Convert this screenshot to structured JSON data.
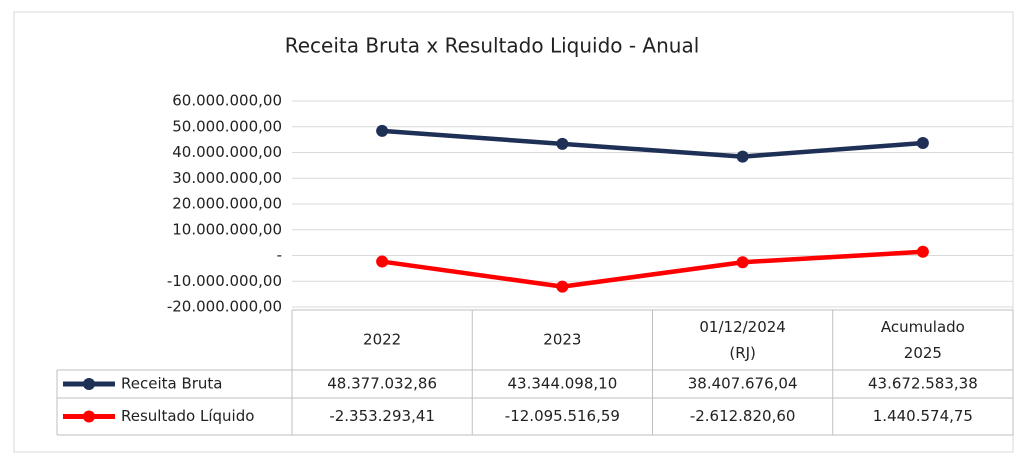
{
  "chart_data": {
    "type": "line",
    "title": "Receita Bruta x Resultado Liquido - Anual",
    "categories": [
      "2022",
      "2023",
      "01/12/2024 (RJ)",
      "Acumulado 2025"
    ],
    "series": [
      {
        "name": "Receita Bruta",
        "color": "#1f3057",
        "values": [
          48377032.86,
          43344098.1,
          38407676.04,
          43672583.38
        ],
        "value_labels": [
          "48.377.032,86",
          "43.344.098,10",
          "38.407.676,04",
          "43.672.583,38"
        ]
      },
      {
        "name": "Resultado Líquido",
        "color": "#ff0000",
        "values": [
          -2353293.41,
          -12095516.59,
          -2612820.6,
          1440574.75
        ],
        "value_labels": [
          "-2.353.293,41",
          "-12.095.516,59",
          "-2.612.820,60",
          "1.440.574,75"
        ]
      }
    ],
    "ylim": [
      -20000000,
      60000000
    ],
    "yticks": [
      {
        "value": -20000000,
        "label": "-20.000.000,00"
      },
      {
        "value": -10000000,
        "label": "-10.000.000,00"
      },
      {
        "value": 0,
        "label": "-"
      },
      {
        "value": 10000000,
        "label": "10.000.000,00"
      },
      {
        "value": 20000000,
        "label": "20.000.000,00"
      },
      {
        "value": 30000000,
        "label": "30.000.000,00"
      },
      {
        "value": 40000000,
        "label": "40.000.000,00"
      },
      {
        "value": 50000000,
        "label": "50.000.000,00"
      },
      {
        "value": 60000000,
        "label": "60.000.000,00"
      }
    ],
    "grid": true
  }
}
